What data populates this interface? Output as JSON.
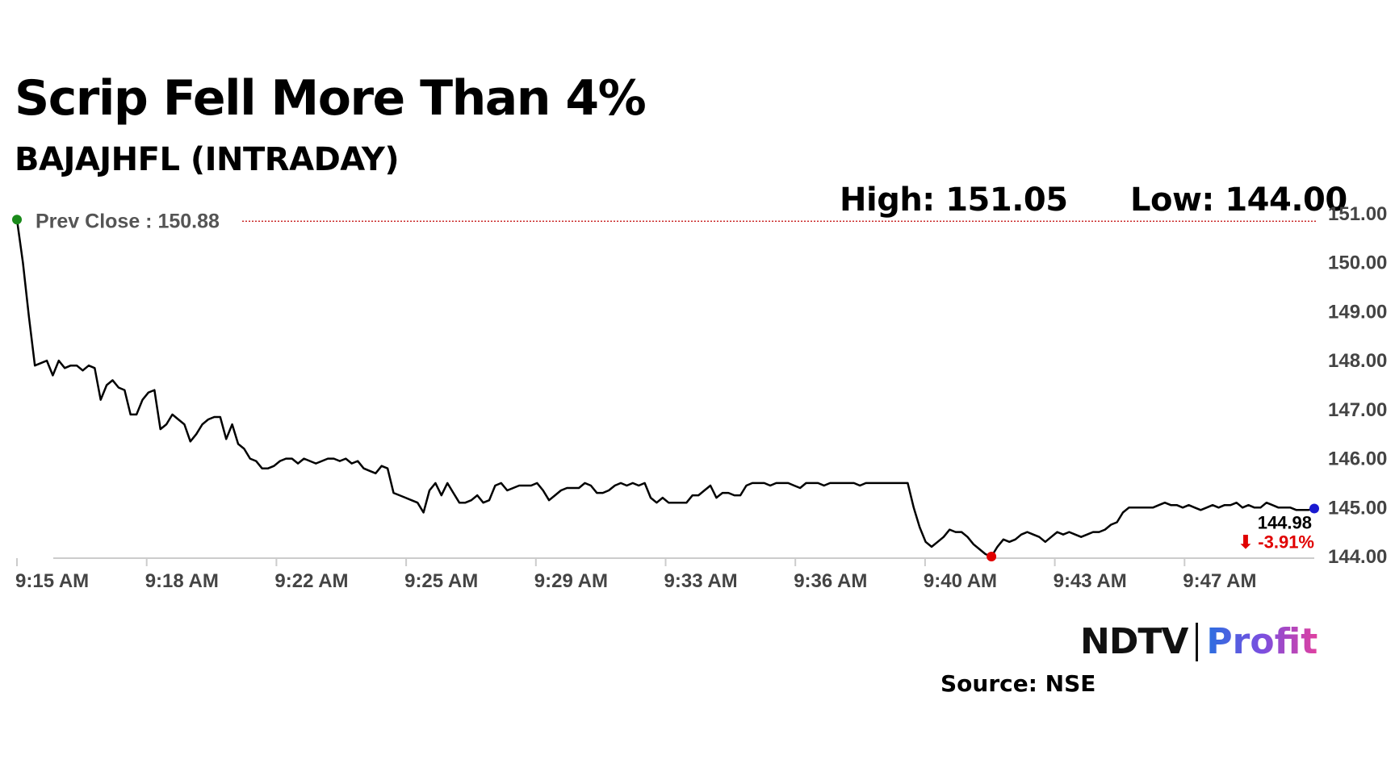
{
  "title": "Scrip Fell More Than 4%",
  "subtitle": "BAJAJHFL (INTRADAY)",
  "high_label": "High: 151.05",
  "low_label": "Low: 144.00",
  "source": "Source: NSE",
  "logo": {
    "ndtv": "NDTV",
    "profit": "Profit"
  },
  "colors": {
    "line": "#000000",
    "prev_close": "#c00000",
    "start_dot": "#1a8a1a",
    "low_dot": "#e00000",
    "end_dot": "#1a1ad0",
    "change": "#e00000"
  },
  "chart_data": {
    "type": "line",
    "ylim": [
      144.0,
      151.0
    ],
    "y_ticks": [
      "151.00",
      "150.00",
      "149.00",
      "148.00",
      "147.00",
      "146.00",
      "145.00",
      "144.00"
    ],
    "y_tick_values": [
      151,
      150,
      149,
      148,
      147,
      146,
      145,
      144
    ],
    "x_ticks": [
      "9:15 AM",
      "9:18 AM",
      "9:22 AM",
      "9:25 AM",
      "9:29 AM",
      "9:33 AM",
      "9:36 AM",
      "9:40 AM",
      "9:43 AM",
      "9:47 AM"
    ],
    "prev_close": 150.88,
    "prev_close_label": "Prev Close : 150.88",
    "last_price": "144.98",
    "change": "⬇ -3.91%",
    "values": [
      150.88,
      150.0,
      148.9,
      147.9,
      147.95,
      148.0,
      147.7,
      148.0,
      147.85,
      147.9,
      147.9,
      147.8,
      147.9,
      147.85,
      147.2,
      147.5,
      147.6,
      147.45,
      147.4,
      146.9,
      146.9,
      147.2,
      147.35,
      147.4,
      146.6,
      146.7,
      146.9,
      146.8,
      146.7,
      146.35,
      146.5,
      146.7,
      146.8,
      146.85,
      146.85,
      146.4,
      146.7,
      146.3,
      146.2,
      146.0,
      145.95,
      145.8,
      145.8,
      145.85,
      145.95,
      146.0,
      146.0,
      145.9,
      146.0,
      145.95,
      145.9,
      145.95,
      146.0,
      146.0,
      145.95,
      146.0,
      145.9,
      145.95,
      145.8,
      145.75,
      145.7,
      145.85,
      145.8,
      145.3,
      145.25,
      145.2,
      145.15,
      145.1,
      144.9,
      145.35,
      145.5,
      145.25,
      145.5,
      145.3,
      145.1,
      145.1,
      145.15,
      145.25,
      145.1,
      145.15,
      145.45,
      145.5,
      145.35,
      145.4,
      145.45,
      145.45,
      145.45,
      145.5,
      145.35,
      145.15,
      145.25,
      145.35,
      145.4,
      145.4,
      145.4,
      145.5,
      145.45,
      145.3,
      145.3,
      145.35,
      145.45,
      145.5,
      145.45,
      145.5,
      145.45,
      145.5,
      145.2,
      145.1,
      145.2,
      145.1,
      145.1,
      145.1,
      145.1,
      145.25,
      145.25,
      145.35,
      145.45,
      145.2,
      145.3,
      145.3,
      145.25,
      145.25,
      145.45,
      145.5,
      145.5,
      145.5,
      145.45,
      145.5,
      145.5,
      145.5,
      145.45,
      145.4,
      145.5,
      145.5,
      145.5,
      145.45,
      145.5,
      145.5,
      145.5,
      145.5,
      145.5,
      145.45,
      145.5,
      145.5,
      145.5,
      145.5,
      145.5,
      145.5,
      145.5,
      145.5,
      145.0,
      144.6,
      144.3,
      144.2,
      144.3,
      144.4,
      144.55,
      144.5,
      144.5,
      144.4,
      144.25,
      144.15,
      144.05,
      144.0,
      144.2,
      144.35,
      144.3,
      144.35,
      144.45,
      144.5,
      144.45,
      144.4,
      144.3,
      144.4,
      144.5,
      144.45,
      144.5,
      144.45,
      144.4,
      144.45,
      144.5,
      144.5,
      144.55,
      144.65,
      144.7,
      144.9,
      145.0,
      145.0,
      145.0,
      145.0,
      145.0,
      145.05,
      145.1,
      145.05,
      145.05,
      145.0,
      145.05,
      145.0,
      144.95,
      145.0,
      145.05,
      145.0,
      145.05,
      145.05,
      145.1,
      145.0,
      145.05,
      145.0,
      145.0,
      145.1,
      145.05,
      145.0,
      145.0,
      145.0,
      144.95,
      144.95,
      144.95,
      144.98
    ]
  }
}
